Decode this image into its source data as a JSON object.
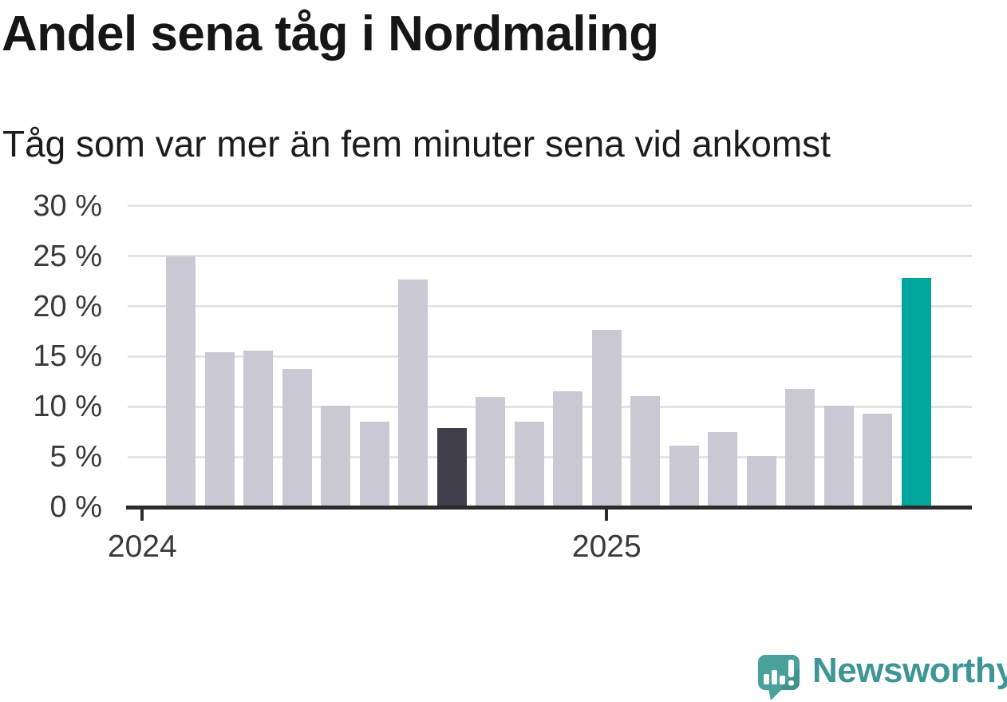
{
  "header": {
    "title": "Andel sena tåg i Nordmaling",
    "subtitle": "Tåg som var mer än fem minuter sena vid ankomst"
  },
  "chart_data": {
    "type": "bar",
    "title": "Andel sena tåg i Nordmaling",
    "subtitle": "Tåg som var mer än fem minuter sena vid ankomst",
    "unit": "%",
    "values": [
      25.0,
      15.4,
      15.6,
      13.8,
      10.1,
      8.5,
      22.7,
      7.9,
      11.0,
      8.5,
      11.5,
      17.7,
      11.1,
      6.1,
      7.5,
      5.1,
      11.8,
      10.1,
      9.3,
      22.8
    ],
    "bar_count": 20,
    "highlight_index": 19,
    "comparison_index": 7,
    "ylim": [
      0,
      30
    ],
    "y_ticks": [
      {
        "value": 0,
        "label": "0 %"
      },
      {
        "value": 5,
        "label": "5 %"
      },
      {
        "value": 10,
        "label": "10 %"
      },
      {
        "value": 15,
        "label": "15 %"
      },
      {
        "value": 20,
        "label": "20 %"
      },
      {
        "value": 25,
        "label": "25 %"
      },
      {
        "value": 30,
        "label": "30 %"
      }
    ],
    "x_ticks": [
      {
        "label": "2024",
        "slot": 0
      },
      {
        "label": "2025",
        "slot": 12
      }
    ],
    "grid": true,
    "legend": false
  },
  "colors": {
    "bar_default": "#cac8d2",
    "bar_comparison": "#413e4c",
    "bar_highlight": "#00a59c",
    "axis": "#2b2b2b",
    "gridline": "#e3e3e5",
    "tick_label": "#3a3a3a",
    "brand_teal": "#3e9596",
    "logo_bubble": "#4aa19c",
    "logo_bubble_shade": "#3f928e"
  },
  "footer": {
    "brand": "Newsworthy"
  }
}
